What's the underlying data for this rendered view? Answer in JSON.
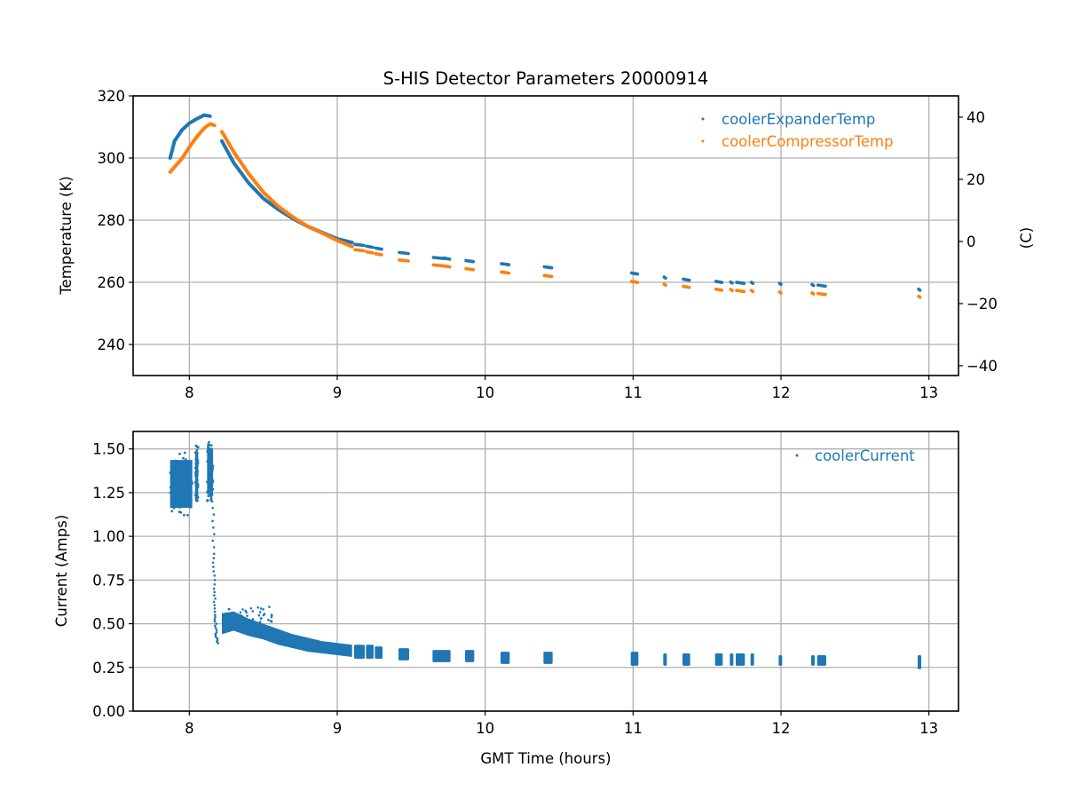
{
  "chart_data": [
    {
      "type": "scatter",
      "title": "S-HIS Detector Parameters 20000914",
      "xlabel": "",
      "ylabel": "Temperature (K)",
      "ylabel_right": "(C)",
      "xlim": [
        7.62,
        13.2
      ],
      "ylim": [
        230,
        320
      ],
      "ylim_right": [
        -43.15,
        46.85
      ],
      "xticks": [
        "8",
        "9",
        "10",
        "11",
        "12",
        "13"
      ],
      "xtick_values": [
        8,
        9,
        10,
        11,
        12,
        13
      ],
      "yticks": [
        "240",
        "260",
        "280",
        "300",
        "320"
      ],
      "ytick_values": [
        240,
        260,
        280,
        300,
        320
      ],
      "yticks_right": [
        "−40",
        "−20",
        "0",
        "20",
        "40"
      ],
      "ytick_right_values": [
        -40,
        -20,
        0,
        20,
        40
      ],
      "grid": true,
      "legend_position": "top-right",
      "series": [
        {
          "name": "coolerExpanderTemp",
          "color": "#1f77b4",
          "continuous": [
            [
              7.87,
              300.0
            ],
            [
              7.9,
              305.5
            ],
            [
              7.95,
              309.0
            ],
            [
              8.0,
              311.2
            ],
            [
              8.05,
              312.6
            ],
            [
              8.1,
              313.8
            ],
            [
              8.14,
              313.5
            ]
          ],
          "continuous2": [
            [
              8.22,
              305.5
            ],
            [
              8.3,
              298.5
            ],
            [
              8.4,
              292.0
            ],
            [
              8.5,
              287.0
            ],
            [
              8.6,
              283.5
            ],
            [
              8.7,
              280.5
            ],
            [
              8.8,
              278.0
            ],
            [
              8.9,
              276.0
            ],
            [
              9.0,
              274.0
            ],
            [
              9.1,
              272.8
            ]
          ],
          "segments": [
            [
              9.12,
              9.18,
              272.2
            ],
            [
              9.2,
              9.24,
              271.6
            ],
            [
              9.26,
              9.3,
              271.0
            ],
            [
              9.42,
              9.48,
              269.6
            ],
            [
              9.65,
              9.72,
              268.0
            ],
            [
              9.72,
              9.76,
              267.8
            ],
            [
              9.87,
              9.92,
              267.0
            ],
            [
              10.11,
              10.16,
              266.0
            ],
            [
              10.4,
              10.45,
              265.0
            ],
            [
              10.99,
              11.03,
              263.0
            ],
            [
              11.21,
              11.22,
              261.7
            ],
            [
              11.34,
              11.38,
              261.0
            ],
            [
              11.56,
              11.6,
              260.3
            ],
            [
              11.66,
              11.67,
              260.1
            ],
            [
              11.7,
              11.75,
              260.0
            ],
            [
              11.8,
              11.81,
              260.0
            ],
            [
              11.99,
              12.0,
              259.7
            ],
            [
              12.21,
              12.22,
              259.3
            ],
            [
              12.25,
              12.3,
              259.1
            ],
            [
              12.93,
              12.94,
              257.8
            ]
          ]
        },
        {
          "name": "coolerCompressorTemp",
          "color": "#ff7f0e",
          "continuous": [
            [
              7.87,
              295.5
            ],
            [
              7.95,
              299.8
            ],
            [
              8.0,
              303.5
            ],
            [
              8.05,
              306.8
            ],
            [
              8.1,
              309.6
            ],
            [
              8.14,
              311.0
            ],
            [
              8.17,
              310.5
            ]
          ],
          "continuous2": [
            [
              8.22,
              308.5
            ],
            [
              8.3,
              302.0
            ],
            [
              8.4,
              295.0
            ],
            [
              8.5,
              289.0
            ],
            [
              8.6,
              284.5
            ],
            [
              8.7,
              281.0
            ],
            [
              8.8,
              278.0
            ],
            [
              8.9,
              275.8
            ],
            [
              9.0,
              273.5
            ],
            [
              9.1,
              271.5
            ]
          ],
          "segments": [
            [
              9.12,
              9.18,
              270.5
            ],
            [
              9.2,
              9.24,
              269.8
            ],
            [
              9.26,
              9.3,
              269.2
            ],
            [
              9.42,
              9.48,
              267.2
            ],
            [
              9.65,
              9.72,
              265.6
            ],
            [
              9.72,
              9.76,
              265.3
            ],
            [
              9.87,
              9.92,
              264.4
            ],
            [
              10.11,
              10.16,
              263.3
            ],
            [
              10.4,
              10.45,
              262.2
            ],
            [
              10.99,
              11.03,
              260.3
            ],
            [
              11.21,
              11.22,
              259.4
            ],
            [
              11.34,
              11.38,
              258.7
            ],
            [
              11.56,
              11.6,
              257.8
            ],
            [
              11.66,
              11.67,
              257.7
            ],
            [
              11.7,
              11.75,
              257.4
            ],
            [
              11.8,
              11.81,
              257.4
            ],
            [
              11.99,
              12.0,
              256.9
            ],
            [
              12.21,
              12.22,
              256.6
            ],
            [
              12.25,
              12.3,
              256.4
            ],
            [
              12.93,
              12.94,
              255.5
            ]
          ]
        }
      ]
    },
    {
      "type": "scatter",
      "title": "",
      "xlabel": "GMT Time (hours)",
      "ylabel": "Current (Amps)",
      "xlim": [
        7.62,
        13.2
      ],
      "ylim": [
        0,
        1.6
      ],
      "xticks": [
        "8",
        "9",
        "10",
        "11",
        "12",
        "13"
      ],
      "xtick_values": [
        8,
        9,
        10,
        11,
        12,
        13
      ],
      "yticks": [
        "0.00",
        "0.25",
        "0.50",
        "0.75",
        "1.00",
        "1.25",
        "1.50"
      ],
      "ytick_values": [
        0,
        0.25,
        0.5,
        0.75,
        1.0,
        1.25,
        1.5
      ],
      "grid": true,
      "legend_position": "top-right",
      "series": [
        {
          "name": "coolerCurrent",
          "color": "#1f77b4",
          "blocks": [
            {
              "x0": 7.87,
              "x1": 8.02,
              "ymin": 1.12,
              "ymax": 1.48
            },
            {
              "x0": 8.04,
              "x1": 8.06,
              "ymin": 1.2,
              "ymax": 1.52
            },
            {
              "x0": 8.12,
              "x1": 8.16,
              "ymin": 1.2,
              "ymax": 1.54
            }
          ],
          "drop": [
            [
              8.15,
              1.5
            ],
            [
              8.16,
              1.2
            ],
            [
              8.165,
              0.9
            ],
            [
              8.17,
              0.7
            ],
            [
              8.175,
              0.55
            ],
            [
              8.18,
              0.45
            ],
            [
              8.19,
              0.38
            ]
          ],
          "band": [
            [
              8.22,
              0.44,
              0.56
            ],
            [
              8.3,
              0.46,
              0.57
            ],
            [
              8.4,
              0.43,
              0.53
            ],
            [
              8.5,
              0.41,
              0.5
            ],
            [
              8.6,
              0.38,
              0.47
            ],
            [
              8.7,
              0.36,
              0.44
            ],
            [
              8.8,
              0.34,
              0.42
            ],
            [
              8.9,
              0.33,
              0.4
            ],
            [
              9.0,
              0.32,
              0.39
            ],
            [
              9.1,
              0.31,
              0.38
            ]
          ],
          "segments": [
            [
              9.12,
              9.18,
              0.3,
              0.38
            ],
            [
              9.2,
              9.24,
              0.3,
              0.38
            ],
            [
              9.26,
              9.3,
              0.3,
              0.37
            ],
            [
              9.42,
              9.48,
              0.29,
              0.36
            ],
            [
              9.65,
              9.72,
              0.28,
              0.35
            ],
            [
              9.72,
              9.76,
              0.28,
              0.35
            ],
            [
              9.87,
              9.92,
              0.28,
              0.35
            ],
            [
              10.11,
              10.16,
              0.27,
              0.34
            ],
            [
              10.4,
              10.45,
              0.27,
              0.34
            ],
            [
              10.99,
              11.03,
              0.26,
              0.34
            ],
            [
              11.21,
              11.22,
              0.26,
              0.33
            ],
            [
              11.34,
              11.38,
              0.26,
              0.33
            ],
            [
              11.56,
              11.6,
              0.26,
              0.33
            ],
            [
              11.66,
              11.67,
              0.26,
              0.33
            ],
            [
              11.7,
              11.75,
              0.26,
              0.33
            ],
            [
              11.8,
              11.81,
              0.26,
              0.33
            ],
            [
              11.99,
              12.0,
              0.26,
              0.32
            ],
            [
              12.21,
              12.22,
              0.26,
              0.32
            ],
            [
              12.25,
              12.3,
              0.26,
              0.32
            ],
            [
              12.93,
              12.94,
              0.24,
              0.32
            ]
          ]
        }
      ]
    }
  ]
}
